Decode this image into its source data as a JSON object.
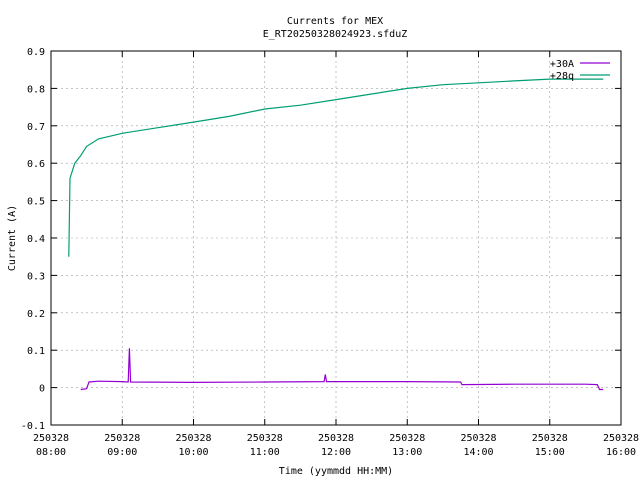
{
  "chart_data": {
    "type": "line",
    "title": "Currents for MEX",
    "subtitle": "E_RT20250328024923.sfduZ",
    "xlabel": "Time (yymmdd HH:MM)",
    "ylabel": "Current (A)",
    "xlim": [
      "250328 08:00",
      "250328 16:00"
    ],
    "ylim": [
      -0.1,
      0.9
    ],
    "grid": true,
    "legend_position": "top-right",
    "x_ticks": [
      {
        "date": "250328",
        "time": "08:00"
      },
      {
        "date": "250328",
        "time": "09:00"
      },
      {
        "date": "250328",
        "time": "10:00"
      },
      {
        "date": "250328",
        "time": "11:00"
      },
      {
        "date": "250328",
        "time": "12:00"
      },
      {
        "date": "250328",
        "time": "13:00"
      },
      {
        "date": "250328",
        "time": "14:00"
      },
      {
        "date": "250328",
        "time": "15:00"
      },
      {
        "date": "250328",
        "time": "16:00"
      }
    ],
    "y_ticks": [
      "-0.1",
      "0",
      "0.1",
      "0.2",
      "0.3",
      "0.4",
      "0.5",
      "0.6",
      "0.7",
      "0.8",
      "0.9"
    ],
    "series": [
      {
        "name": "+30A",
        "color": "#9400d3",
        "points": [
          {
            "x": "250328 08:25",
            "y": -0.005
          },
          {
            "x": "250328 08:30",
            "y": -0.003
          },
          {
            "x": "250328 08:32",
            "y": 0.015
          },
          {
            "x": "250328 08:40",
            "y": 0.017
          },
          {
            "x": "250328 09:00",
            "y": 0.016
          },
          {
            "x": "250328 09:05",
            "y": 0.015
          },
          {
            "x": "250328 09:06",
            "y": 0.105
          },
          {
            "x": "250328 09:07",
            "y": 0.015
          },
          {
            "x": "250328 10:00",
            "y": 0.014
          },
          {
            "x": "250328 11:00",
            "y": 0.015
          },
          {
            "x": "250328 11:50",
            "y": 0.016
          },
          {
            "x": "250328 11:51",
            "y": 0.035
          },
          {
            "x": "250328 11:52",
            "y": 0.016
          },
          {
            "x": "250328 13:00",
            "y": 0.016
          },
          {
            "x": "250328 13:45",
            "y": 0.015
          },
          {
            "x": "250328 13:46",
            "y": 0.008
          },
          {
            "x": "250328 14:30",
            "y": 0.009
          },
          {
            "x": "250328 15:30",
            "y": 0.009
          },
          {
            "x": "250328 15:40",
            "y": 0.008
          },
          {
            "x": "250328 15:42",
            "y": -0.005
          },
          {
            "x": "250328 15:45",
            "y": -0.005
          }
        ]
      },
      {
        "name": "+28q",
        "color": "#009e73",
        "points": [
          {
            "x": "250328 08:15",
            "y": 0.35
          },
          {
            "x": "250328 08:16",
            "y": 0.56
          },
          {
            "x": "250328 08:18",
            "y": 0.58
          },
          {
            "x": "250328 08:20",
            "y": 0.6
          },
          {
            "x": "250328 08:25",
            "y": 0.62
          },
          {
            "x": "250328 08:30",
            "y": 0.645
          },
          {
            "x": "250328 08:40",
            "y": 0.665
          },
          {
            "x": "250328 09:00",
            "y": 0.68
          },
          {
            "x": "250328 09:30",
            "y": 0.695
          },
          {
            "x": "250328 10:00",
            "y": 0.71
          },
          {
            "x": "250328 10:30",
            "y": 0.725
          },
          {
            "x": "250328 11:00",
            "y": 0.745
          },
          {
            "x": "250328 11:30",
            "y": 0.755
          },
          {
            "x": "250328 12:00",
            "y": 0.77
          },
          {
            "x": "250328 12:30",
            "y": 0.785
          },
          {
            "x": "250328 13:00",
            "y": 0.8
          },
          {
            "x": "250328 13:30",
            "y": 0.81
          },
          {
            "x": "250328 14:00",
            "y": 0.815
          },
          {
            "x": "250328 14:30",
            "y": 0.82
          },
          {
            "x": "250328 15:00",
            "y": 0.825
          },
          {
            "x": "250328 15:30",
            "y": 0.825
          },
          {
            "x": "250328 15:45",
            "y": 0.825
          }
        ]
      }
    ]
  }
}
